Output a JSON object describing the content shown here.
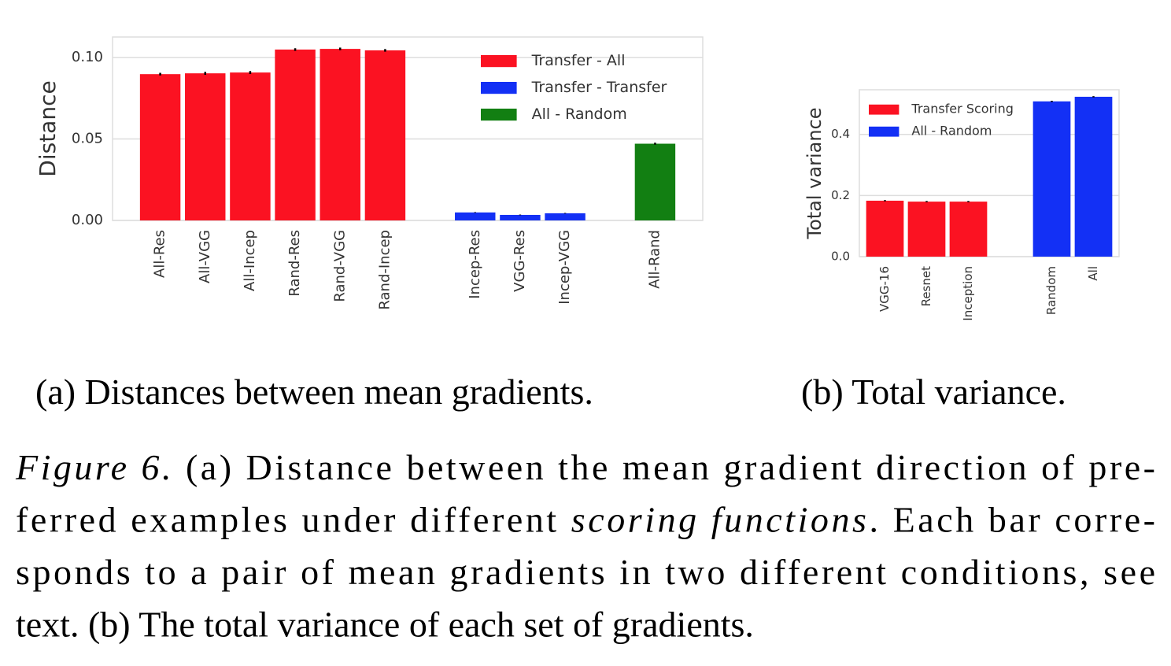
{
  "chart_data": [
    {
      "type": "bar",
      "ylabel": "Distance",
      "categories": [
        "All-Res",
        "All-VGG",
        "All-Incep",
        "Rand-Res",
        "Rand-VGG",
        "Rand-Incep",
        null,
        "Incep-Res",
        "VGG-Res",
        "Incep-VGG",
        null,
        "All-Rand"
      ],
      "series": [
        {
          "name": "Transfer - All",
          "color": "#fb1222",
          "values": [
            0.0898,
            0.0903,
            0.0908,
            0.1049,
            0.1053,
            0.1044,
            null,
            null,
            null,
            null,
            null,
            null
          ],
          "errors": [
            0.0008,
            0.0009,
            0.0009,
            0.0008,
            0.0008,
            0.0008,
            null,
            null,
            null,
            null,
            null,
            null
          ]
        },
        {
          "name": "Transfer - Transfer",
          "color": "#1330f5",
          "values": [
            null,
            null,
            null,
            null,
            null,
            null,
            null,
            0.0049,
            0.0034,
            0.0044,
            null,
            null
          ],
          "errors": [
            null,
            null,
            null,
            null,
            null,
            null,
            null,
            0.0002,
            0.0002,
            0.0002,
            null,
            null
          ]
        },
        {
          "name": "All - Random",
          "color": "#127f12",
          "values": [
            null,
            null,
            null,
            null,
            null,
            null,
            null,
            null,
            null,
            null,
            null,
            0.0471
          ],
          "errors": [
            null,
            null,
            null,
            null,
            null,
            null,
            null,
            null,
            null,
            null,
            null,
            0.0006
          ]
        }
      ],
      "ylim": [
        0,
        0.1126
      ],
      "yticks": [
        {
          "value": 0,
          "label": "0.00"
        },
        {
          "value": 0.05,
          "label": "0.05"
        },
        {
          "value": 0.1,
          "label": "0.10"
        }
      ],
      "grid": true,
      "legend": "upper right"
    },
    {
      "type": "bar",
      "ylabel": "Total variance",
      "categories": [
        "VGG-16",
        "Resnet",
        "Inception",
        null,
        "Random",
        "All"
      ],
      "series": [
        {
          "name": "Transfer Scoring",
          "color": "#fb1222",
          "values": [
            0.183,
            0.18,
            0.18,
            null,
            null,
            null
          ],
          "errors": [
            0.002,
            0.002,
            0.002,
            null,
            null,
            null
          ]
        },
        {
          "name": "All - Random",
          "color": "#1330f5",
          "values": [
            null,
            null,
            null,
            null,
            0.508,
            0.523
          ],
          "errors": [
            null,
            null,
            null,
            null,
            0.002,
            0.002
          ]
        }
      ],
      "ylim": [
        0,
        0.546
      ],
      "yticks": [
        {
          "value": 0,
          "label": "0.0"
        },
        {
          "value": 0.2,
          "label": "0.2"
        },
        {
          "value": 0.4,
          "label": "0.4"
        }
      ],
      "grid": true,
      "legend": "upper left"
    }
  ],
  "subcaptions": [
    "(a) Distances between mean gradients.",
    "(b) Total variance."
  ],
  "caption": {
    "lines": [
      [
        {
          "text": "Figure 6.",
          "italic": true
        },
        {
          "text": " (a) Distance between the mean gradient direction of pre-",
          "italic": false
        }
      ],
      [
        {
          "text": "ferred examples under different ",
          "italic": false
        },
        {
          "text": "scoring functions",
          "italic": true
        },
        {
          "text": ". Each bar corre-",
          "italic": false
        }
      ],
      [
        {
          "text": "sponds to a pair of mean gradients in two different conditions, see",
          "italic": false
        }
      ],
      [
        {
          "text": "text. (b) The total variance of each set of gradients.",
          "italic": false
        }
      ]
    ]
  }
}
